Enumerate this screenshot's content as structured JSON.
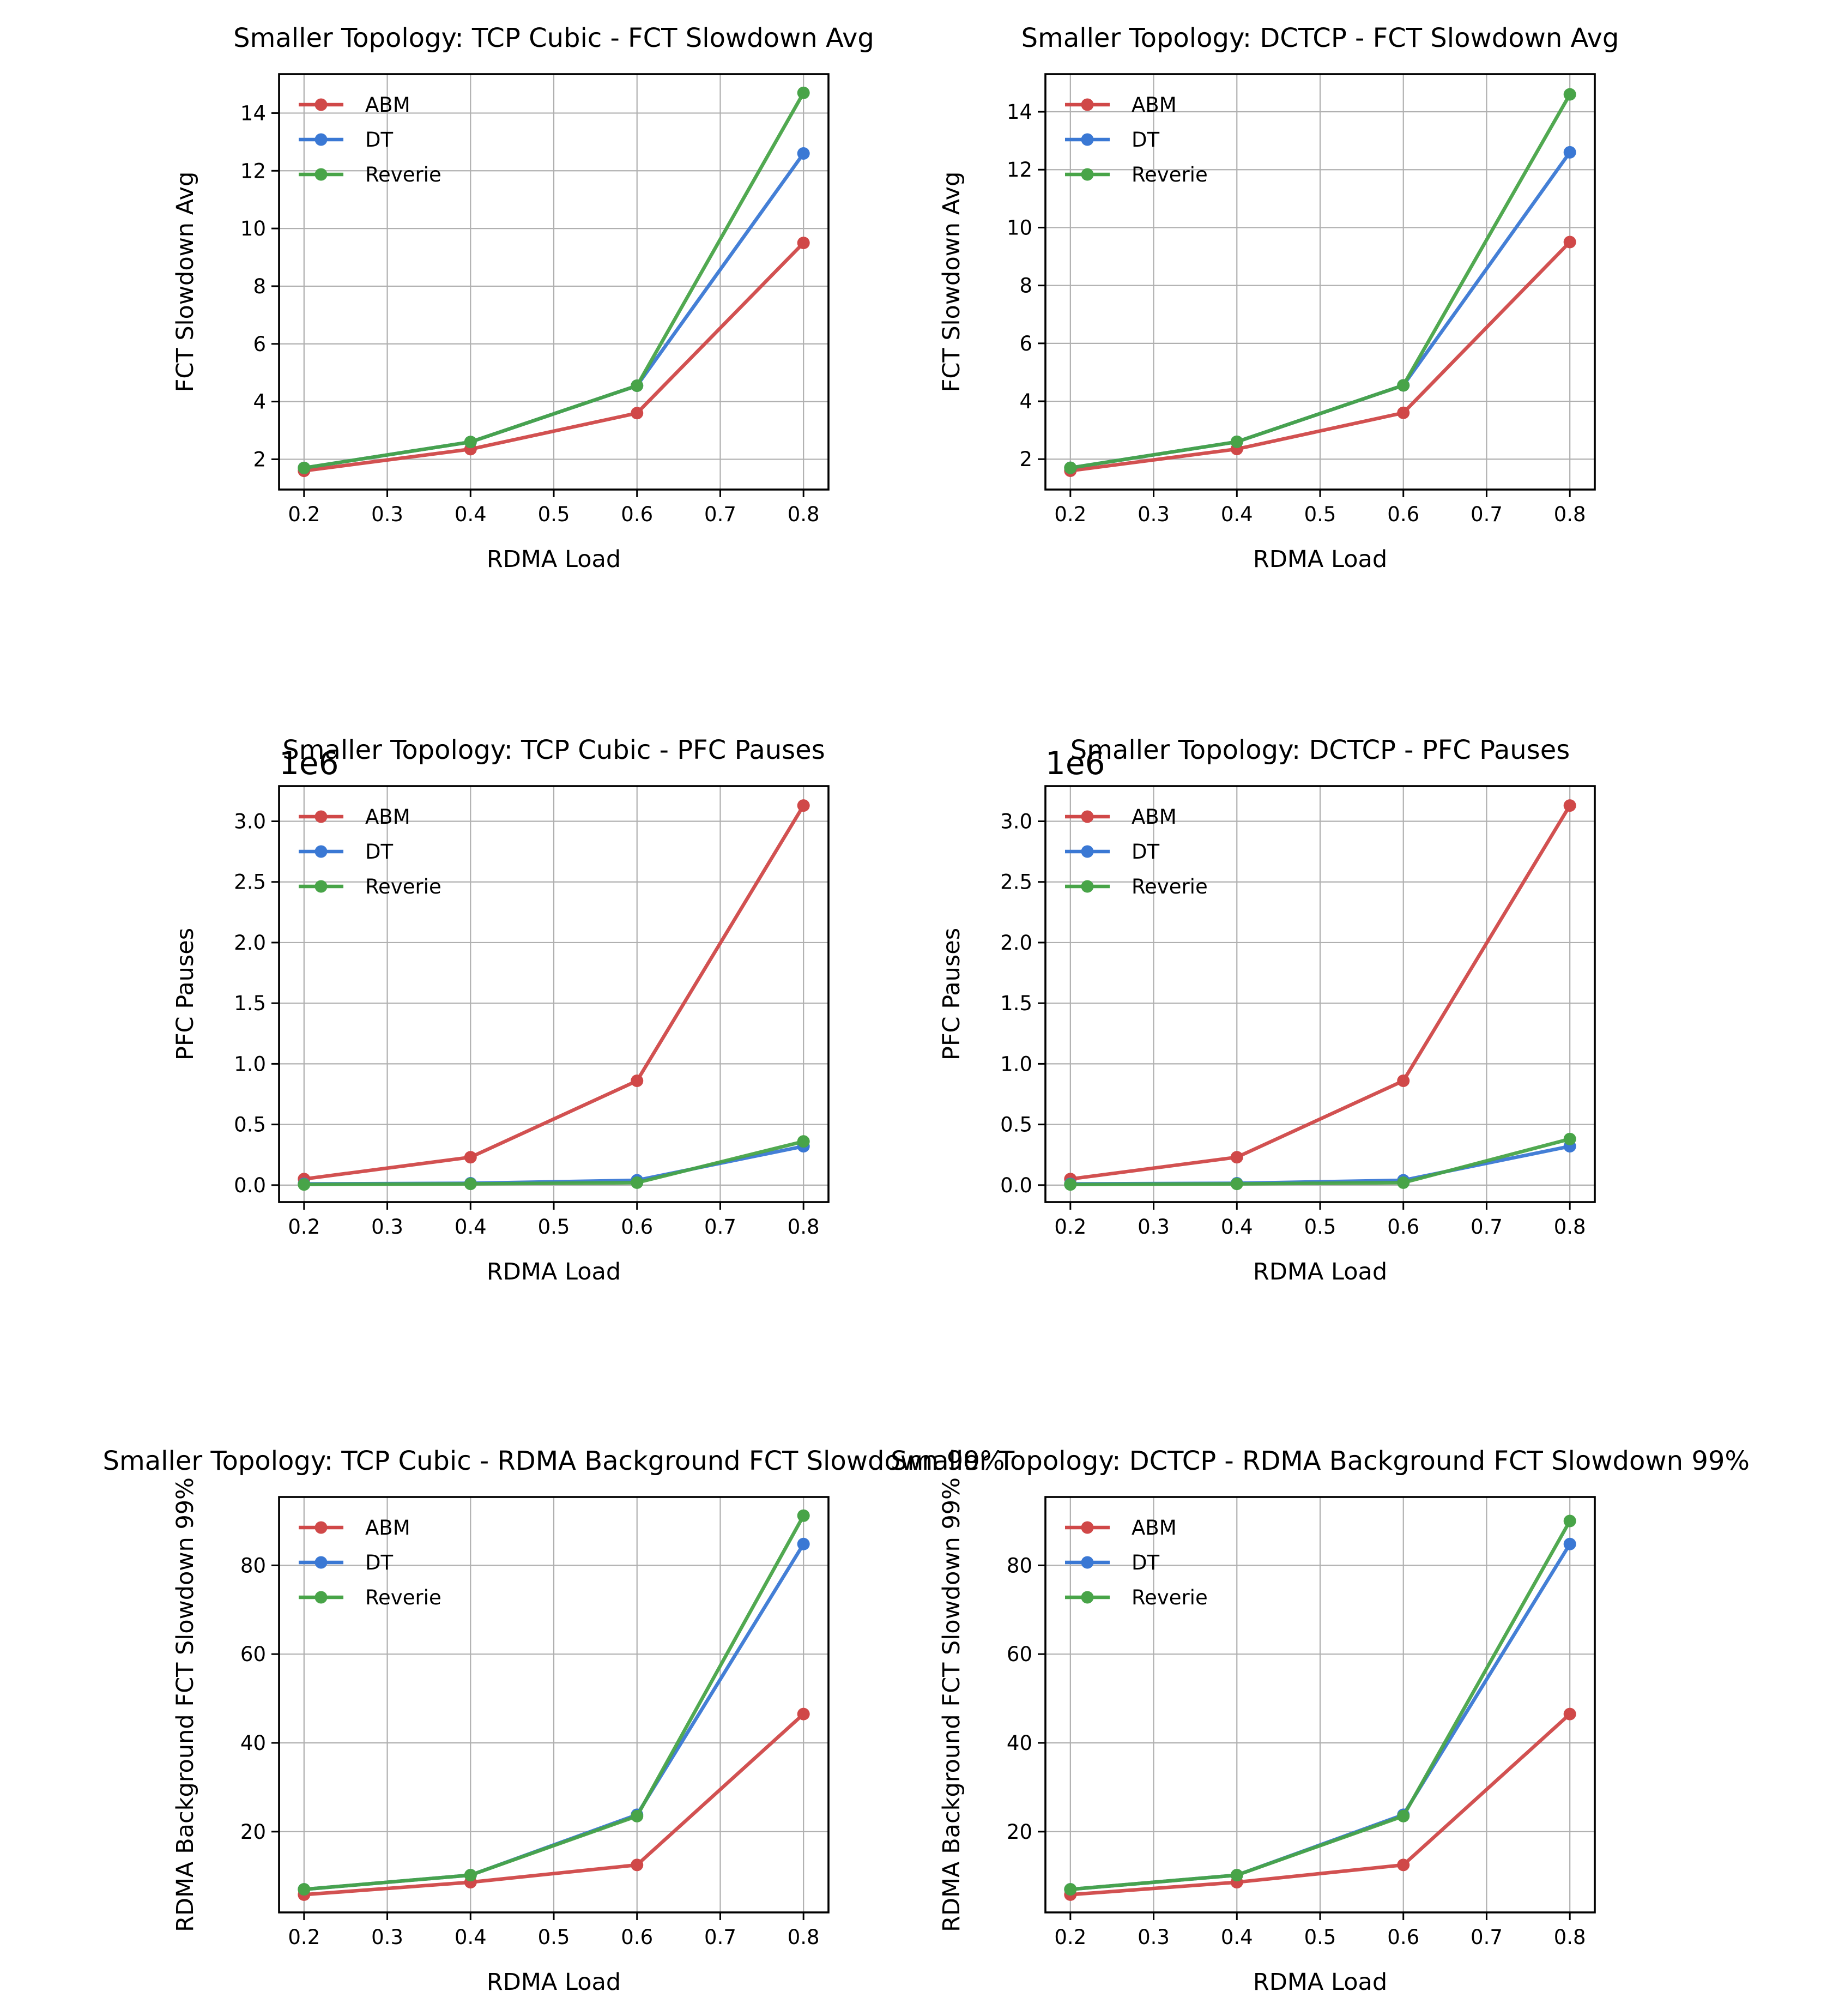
{
  "colors": {
    "ABM": "#d04848",
    "DT": "#3a78d4",
    "Reverie": "#48a448"
  },
  "chart_data": [
    {
      "type": "line",
      "title": "Smaller Topology: TCP Cubic - FCT Slowdown Avg",
      "xlabel": "RDMA Load",
      "ylabel": "FCT Slowdown Avg",
      "x": [
        0.2,
        0.4,
        0.6,
        0.8
      ],
      "xlim": [
        0.17,
        0.83
      ],
      "xticks": [
        0.2,
        0.3,
        0.4,
        0.5,
        0.6,
        0.7,
        0.8
      ],
      "xtick_labels": [
        "0.2",
        "0.3",
        "0.4",
        "0.5",
        "0.6",
        "0.7",
        "0.8"
      ],
      "ylim": [
        0.95,
        15.35
      ],
      "yticks": [
        2,
        4,
        6,
        8,
        10,
        12,
        14
      ],
      "ytick_labels": [
        "2",
        "4",
        "6",
        "8",
        "10",
        "12",
        "14"
      ],
      "offset_text": "",
      "grid": true,
      "legend_position": "upper-left",
      "series": [
        {
          "name": "ABM",
          "values": [
            1.6,
            2.35,
            3.6,
            9.5
          ]
        },
        {
          "name": "DT",
          "values": [
            1.7,
            2.6,
            4.55,
            12.6
          ]
        },
        {
          "name": "Reverie",
          "values": [
            1.7,
            2.6,
            4.55,
            14.7
          ]
        }
      ]
    },
    {
      "type": "line",
      "title": "Smaller Topology: DCTCP - FCT Slowdown Avg",
      "xlabel": "RDMA Load",
      "ylabel": "FCT Slowdown Avg",
      "x": [
        0.2,
        0.4,
        0.6,
        0.8
      ],
      "xlim": [
        0.17,
        0.83
      ],
      "xticks": [
        0.2,
        0.3,
        0.4,
        0.5,
        0.6,
        0.7,
        0.8
      ],
      "xtick_labels": [
        "0.2",
        "0.3",
        "0.4",
        "0.5",
        "0.6",
        "0.7",
        "0.8"
      ],
      "ylim": [
        0.95,
        15.3
      ],
      "yticks": [
        2,
        4,
        6,
        8,
        10,
        12,
        14
      ],
      "ytick_labels": [
        "2",
        "4",
        "6",
        "8",
        "10",
        "12",
        "14"
      ],
      "offset_text": "",
      "grid": true,
      "legend_position": "upper-left",
      "series": [
        {
          "name": "ABM",
          "values": [
            1.6,
            2.35,
            3.6,
            9.5
          ]
        },
        {
          "name": "DT",
          "values": [
            1.7,
            2.6,
            4.55,
            12.6
          ]
        },
        {
          "name": "Reverie",
          "values": [
            1.7,
            2.6,
            4.55,
            14.6
          ]
        }
      ]
    },
    {
      "type": "line",
      "title": "Smaller Topology: TCP Cubic - PFC Pauses",
      "xlabel": "RDMA Load",
      "ylabel": "PFC Pauses",
      "x": [
        0.2,
        0.4,
        0.6,
        0.8
      ],
      "xlim": [
        0.17,
        0.83
      ],
      "xticks": [
        0.2,
        0.3,
        0.4,
        0.5,
        0.6,
        0.7,
        0.8
      ],
      "xtick_labels": [
        "0.2",
        "0.3",
        "0.4",
        "0.5",
        "0.6",
        "0.7",
        "0.8"
      ],
      "ylim": [
        -0.14,
        3.29
      ],
      "yticks": [
        0.0,
        0.5,
        1.0,
        1.5,
        2.0,
        2.5,
        3.0
      ],
      "ytick_labels": [
        "0.0",
        "0.5",
        "1.0",
        "1.5",
        "2.0",
        "2.5",
        "3.0"
      ],
      "offset_text": "1e6",
      "grid": true,
      "legend_position": "upper-left",
      "series": [
        {
          "name": "ABM",
          "values": [
            0.05,
            0.23,
            0.86,
            3.13
          ]
        },
        {
          "name": "DT",
          "values": [
            0.01,
            0.015,
            0.04,
            0.32
          ]
        },
        {
          "name": "Reverie",
          "values": [
            0.005,
            0.01,
            0.02,
            0.36
          ]
        }
      ]
    },
    {
      "type": "line",
      "title": "Smaller Topology: DCTCP - PFC Pauses",
      "xlabel": "RDMA Load",
      "ylabel": "PFC Pauses",
      "x": [
        0.2,
        0.4,
        0.6,
        0.8
      ],
      "xlim": [
        0.17,
        0.83
      ],
      "xticks": [
        0.2,
        0.3,
        0.4,
        0.5,
        0.6,
        0.7,
        0.8
      ],
      "xtick_labels": [
        "0.2",
        "0.3",
        "0.4",
        "0.5",
        "0.6",
        "0.7",
        "0.8"
      ],
      "ylim": [
        -0.14,
        3.29
      ],
      "yticks": [
        0.0,
        0.5,
        1.0,
        1.5,
        2.0,
        2.5,
        3.0
      ],
      "ytick_labels": [
        "0.0",
        "0.5",
        "1.0",
        "1.5",
        "2.0",
        "2.5",
        "3.0"
      ],
      "offset_text": "1e6",
      "grid": true,
      "legend_position": "upper-left",
      "series": [
        {
          "name": "ABM",
          "values": [
            0.05,
            0.23,
            0.86,
            3.13
          ]
        },
        {
          "name": "DT",
          "values": [
            0.01,
            0.015,
            0.04,
            0.32
          ]
        },
        {
          "name": "Reverie",
          "values": [
            0.005,
            0.01,
            0.02,
            0.38
          ]
        }
      ]
    },
    {
      "type": "line",
      "title": "Smaller Topology: TCP Cubic - RDMA Background FCT Slowdown 99%",
      "xlabel": "RDMA Load",
      "ylabel": "RDMA Background FCT Slowdown 99%",
      "x": [
        0.2,
        0.4,
        0.6,
        0.8
      ],
      "xlim": [
        0.17,
        0.83
      ],
      "xticks": [
        0.2,
        0.3,
        0.4,
        0.5,
        0.6,
        0.7,
        0.8
      ],
      "xtick_labels": [
        "0.2",
        "0.3",
        "0.4",
        "0.5",
        "0.6",
        "0.7",
        "0.8"
      ],
      "ylim": [
        1.8,
        95.4
      ],
      "yticks": [
        20,
        40,
        60,
        80
      ],
      "ytick_labels": [
        "20",
        "40",
        "60",
        "80"
      ],
      "offset_text": "",
      "grid": true,
      "legend_position": "upper-left",
      "series": [
        {
          "name": "ABM",
          "values": [
            5.8,
            8.6,
            12.5,
            46.5
          ]
        },
        {
          "name": "DT",
          "values": [
            7.0,
            10.2,
            23.8,
            84.8
          ]
        },
        {
          "name": "Reverie",
          "values": [
            7.0,
            10.2,
            23.5,
            91.2
          ]
        }
      ]
    },
    {
      "type": "line",
      "title": "Smaller Topology: DCTCP - RDMA Background FCT Slowdown 99%",
      "xlabel": "RDMA Load",
      "ylabel": "RDMA Background FCT Slowdown 99%",
      "x": [
        0.2,
        0.4,
        0.6,
        0.8
      ],
      "xlim": [
        0.17,
        0.83
      ],
      "xticks": [
        0.2,
        0.3,
        0.4,
        0.5,
        0.6,
        0.7,
        0.8
      ],
      "xtick_labels": [
        "0.2",
        "0.3",
        "0.4",
        "0.5",
        "0.6",
        "0.7",
        "0.8"
      ],
      "ylim": [
        1.8,
        95.4
      ],
      "yticks": [
        20,
        40,
        60,
        80
      ],
      "ytick_labels": [
        "20",
        "40",
        "60",
        "80"
      ],
      "offset_text": "",
      "grid": true,
      "legend_position": "upper-left",
      "series": [
        {
          "name": "ABM",
          "values": [
            5.8,
            8.6,
            12.5,
            46.5
          ]
        },
        {
          "name": "DT",
          "values": [
            7.0,
            10.2,
            23.8,
            84.8
          ]
        },
        {
          "name": "Reverie",
          "values": [
            7.0,
            10.2,
            23.5,
            90.0
          ]
        }
      ]
    }
  ]
}
